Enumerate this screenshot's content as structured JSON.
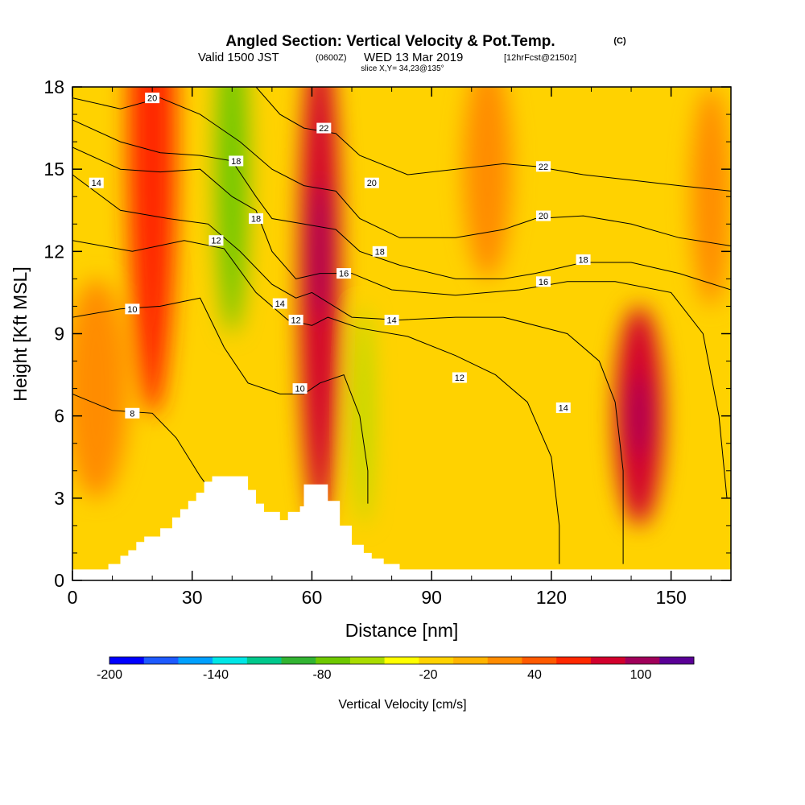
{
  "chart_data": {
    "type": "heatmap",
    "title": "Angled Section: Vertical Velocity & Pot.Temp.",
    "title_mark": "(C)",
    "subtitle_main": "Valid 1500 JST",
    "subtitle_utc": "(0600Z)",
    "subtitle_date": "WED 13 Mar 2019",
    "subtitle_fcst": "[12hrFcst@2150z]",
    "slice_label": "slice X,Y= 34,23@135°",
    "xlabel": "Distance [nm]",
    "ylabel": "Height [Kft MSL]",
    "xlim": [
      0,
      165
    ],
    "ylim": [
      0,
      18
    ],
    "xticks": [
      0,
      30,
      60,
      90,
      120,
      150
    ],
    "yticks": [
      0,
      3,
      6,
      9,
      12,
      15,
      18
    ],
    "grid": false,
    "colorbar": {
      "label": "Vertical Velocity [cm/s]",
      "tick_labels": [
        "-200",
        "-140",
        "-80",
        "-20",
        "40",
        "100"
      ],
      "tick_values": [
        -200,
        -140,
        -80,
        -20,
        40,
        100
      ],
      "range": [
        -200,
        130
      ],
      "step": 20,
      "colors": [
        "#0000ff",
        "#1e5aff",
        "#00a0ff",
        "#00e6e6",
        "#00c88c",
        "#32b432",
        "#6ec800",
        "#aadc00",
        "#ffff00",
        "#ffd200",
        "#ffb400",
        "#ff8c00",
        "#ff5a00",
        "#ff2800",
        "#d2002d",
        "#a0005a",
        "#5a0096"
      ]
    },
    "velocity_features": [
      {
        "kind": "updraft",
        "x": 20,
        "y": 16,
        "rx": 6,
        "ry": 10,
        "value": 75
      },
      {
        "kind": "updraft",
        "x": 62,
        "y": 11,
        "rx": 5,
        "ry": 9,
        "value": 90
      },
      {
        "kind": "updraft",
        "x": 62,
        "y": 12,
        "rx": 2,
        "ry": 2.5,
        "value": 115
      },
      {
        "kind": "updraft",
        "x": 142,
        "y": 6,
        "rx": 6,
        "ry": 4,
        "value": 85
      },
      {
        "kind": "updraft",
        "x": 142,
        "y": 6,
        "rx": 2,
        "ry": 1.5,
        "value": 100
      },
      {
        "kind": "downdraft",
        "x": 40,
        "y": 15,
        "rx": 4,
        "ry": 6,
        "value": -70
      },
      {
        "kind": "downdraft",
        "x": 73,
        "y": 6,
        "rx": 2,
        "ry": 4,
        "value": -50
      },
      {
        "kind": "updraft",
        "x": 6,
        "y": 7,
        "rx": 8,
        "ry": 4,
        "value": 30
      },
      {
        "kind": "updraft",
        "x": 104,
        "y": 15,
        "rx": 6,
        "ry": 4,
        "value": 25
      },
      {
        "kind": "updraft",
        "x": 160,
        "y": 14,
        "rx": 5,
        "ry": 4,
        "value": 25
      }
    ],
    "contours": [
      {
        "value": 8,
        "label_x": 15,
        "label_y": 6.1,
        "points": [
          [
            0,
            6.8
          ],
          [
            10,
            6.2
          ],
          [
            20,
            6.1
          ],
          [
            26,
            5.2
          ],
          [
            32,
            3.8
          ],
          [
            36,
            3.0
          ]
        ]
      },
      {
        "value": 10,
        "label_x": 15,
        "label_y": 9.9,
        "points": [
          [
            0,
            9.6
          ],
          [
            12,
            9.9
          ],
          [
            22,
            10.0
          ],
          [
            32,
            10.3
          ],
          [
            38,
            8.5
          ],
          [
            44,
            7.2
          ],
          [
            52,
            6.8
          ],
          [
            58,
            6.8
          ],
          [
            62,
            7.2
          ],
          [
            68,
            7.5
          ],
          [
            72,
            6.0
          ],
          [
            74,
            4.0
          ],
          [
            74,
            2.8
          ]
        ]
      },
      {
        "value": 12,
        "label_x": 36,
        "label_y": 12.4,
        "points": [
          [
            0,
            12.4
          ],
          [
            15,
            12.0
          ],
          [
            28,
            12.4
          ],
          [
            38,
            12.1
          ],
          [
            46,
            10.5
          ],
          [
            54,
            9.5
          ],
          [
            60,
            9.3
          ],
          [
            64,
            9.6
          ],
          [
            72,
            9.2
          ],
          [
            84,
            8.9
          ],
          [
            96,
            8.2
          ],
          [
            106,
            7.5
          ],
          [
            114,
            6.5
          ],
          [
            120,
            4.5
          ],
          [
            122,
            2.0
          ],
          [
            122,
            0.6
          ]
        ]
      },
      {
        "value": 14,
        "label_x": 6,
        "label_y": 14.5,
        "points": [
          [
            0,
            14.8
          ],
          [
            12,
            13.5
          ],
          [
            24,
            13.2
          ],
          [
            34,
            13.0
          ],
          [
            42,
            12.0
          ],
          [
            50,
            10.8
          ],
          [
            56,
            10.3
          ],
          [
            60,
            10.5
          ],
          [
            70,
            9.6
          ],
          [
            82,
            9.5
          ],
          [
            96,
            9.6
          ],
          [
            108,
            9.6
          ],
          [
            124,
            9.0
          ],
          [
            132,
            8.0
          ],
          [
            136,
            6.5
          ],
          [
            138,
            4.0
          ],
          [
            138,
            0.6
          ]
        ]
      },
      {
        "value": 16,
        "label_x": 68,
        "label_y": 11.2,
        "points": [
          [
            0,
            15.8
          ],
          [
            12,
            15.0
          ],
          [
            22,
            14.9
          ],
          [
            32,
            15.0
          ],
          [
            40,
            14.0
          ],
          [
            46,
            13.5
          ],
          [
            50,
            12.0
          ],
          [
            56,
            11.0
          ],
          [
            62,
            11.2
          ],
          [
            70,
            11.2
          ],
          [
            80,
            10.6
          ],
          [
            96,
            10.4
          ],
          [
            112,
            10.6
          ],
          [
            124,
            10.9
          ],
          [
            136,
            10.9
          ],
          [
            150,
            10.5
          ],
          [
            158,
            9.0
          ],
          [
            162,
            6.0
          ],
          [
            164,
            3.0
          ]
        ]
      },
      {
        "value": 18,
        "label_x": 41,
        "label_y": 15.3,
        "points": [
          [
            0,
            16.8
          ],
          [
            12,
            16.0
          ],
          [
            22,
            15.6
          ],
          [
            32,
            15.5
          ],
          [
            40,
            15.3
          ],
          [
            46,
            14.0
          ],
          [
            50,
            13.2
          ],
          [
            58,
            13.0
          ],
          [
            66,
            12.8
          ],
          [
            72,
            12.0
          ],
          [
            82,
            11.5
          ],
          [
            96,
            11.0
          ],
          [
            108,
            11.0
          ],
          [
            116,
            11.2
          ],
          [
            128,
            11.6
          ],
          [
            140,
            11.6
          ],
          [
            152,
            11.2
          ],
          [
            165,
            10.6
          ]
        ]
      },
      {
        "value": 20,
        "label_x": 20,
        "label_y": 17.6,
        "points": [
          [
            0,
            17.6
          ],
          [
            12,
            17.2
          ],
          [
            22,
            17.6
          ],
          [
            32,
            17.0
          ],
          [
            42,
            16.0
          ],
          [
            50,
            15.0
          ],
          [
            58,
            14.4
          ],
          [
            66,
            14.2
          ],
          [
            72,
            13.2
          ],
          [
            82,
            12.5
          ],
          [
            96,
            12.5
          ],
          [
            108,
            12.8
          ],
          [
            116,
            13.2
          ],
          [
            128,
            13.3
          ],
          [
            140,
            13.0
          ],
          [
            152,
            12.5
          ],
          [
            165,
            12.2
          ]
        ]
      },
      {
        "value": 22,
        "label_x": 63,
        "label_y": 16.5,
        "points": [
          [
            46,
            18.0
          ],
          [
            52,
            17.0
          ],
          [
            58,
            16.5
          ],
          [
            66,
            16.3
          ],
          [
            72,
            15.5
          ],
          [
            84,
            14.8
          ],
          [
            96,
            15.0
          ],
          [
            108,
            15.2
          ],
          [
            116,
            15.1
          ],
          [
            128,
            14.8
          ],
          [
            140,
            14.6
          ],
          [
            152,
            14.4
          ],
          [
            165,
            14.2
          ]
        ]
      }
    ],
    "extra_labels": [
      {
        "value": 18,
        "x": 46,
        "y": 13.2
      },
      {
        "value": 20,
        "x": 75,
        "y": 14.5
      },
      {
        "value": 18,
        "x": 77,
        "y": 12.0
      },
      {
        "value": 22,
        "x": 118,
        "y": 15.1
      },
      {
        "value": 20,
        "x": 118,
        "y": 13.3
      },
      {
        "value": 18,
        "x": 128,
        "y": 11.7
      },
      {
        "value": 16,
        "x": 118,
        "y": 10.9
      },
      {
        "value": 14,
        "x": 52,
        "y": 10.1
      },
      {
        "value": 14,
        "x": 80,
        "y": 9.5
      },
      {
        "value": 12,
        "x": 56,
        "y": 9.5
      },
      {
        "value": 12,
        "x": 97,
        "y": 7.4
      },
      {
        "value": 10,
        "x": 57,
        "y": 7.0
      },
      {
        "value": 14,
        "x": 123,
        "y": 6.3
      }
    ],
    "terrain": [
      [
        0,
        0.4
      ],
      [
        9,
        0.4
      ],
      [
        9,
        0.6
      ],
      [
        12,
        0.6
      ],
      [
        12,
        0.9
      ],
      [
        14,
        0.9
      ],
      [
        14,
        1.1
      ],
      [
        16,
        1.1
      ],
      [
        16,
        1.4
      ],
      [
        18,
        1.4
      ],
      [
        18,
        1.6
      ],
      [
        22,
        1.6
      ],
      [
        22,
        1.9
      ],
      [
        25,
        1.9
      ],
      [
        25,
        2.3
      ],
      [
        27,
        2.3
      ],
      [
        27,
        2.6
      ],
      [
        29,
        2.6
      ],
      [
        29,
        2.9
      ],
      [
        31,
        2.9
      ],
      [
        31,
        3.2
      ],
      [
        33,
        3.2
      ],
      [
        33,
        3.6
      ],
      [
        35,
        3.6
      ],
      [
        35,
        3.8
      ],
      [
        44,
        3.8
      ],
      [
        44,
        3.3
      ],
      [
        46,
        3.3
      ],
      [
        46,
        2.8
      ],
      [
        48,
        2.8
      ],
      [
        48,
        2.5
      ],
      [
        52,
        2.5
      ],
      [
        52,
        2.2
      ],
      [
        54,
        2.2
      ],
      [
        54,
        2.5
      ],
      [
        57,
        2.5
      ],
      [
        57,
        2.7
      ],
      [
        58,
        2.7
      ],
      [
        58,
        3.5
      ],
      [
        64,
        3.5
      ],
      [
        64,
        2.9
      ],
      [
        67,
        2.9
      ],
      [
        67,
        2.0
      ],
      [
        70,
        2.0
      ],
      [
        70,
        1.3
      ],
      [
        73,
        1.3
      ],
      [
        73,
        1.0
      ],
      [
        75,
        1.0
      ],
      [
        75,
        0.8
      ],
      [
        78,
        0.8
      ],
      [
        78,
        0.6
      ],
      [
        82,
        0.6
      ],
      [
        82,
        0.4
      ],
      [
        165,
        0.4
      ],
      [
        165,
        0
      ],
      [
        0,
        0
      ]
    ]
  }
}
